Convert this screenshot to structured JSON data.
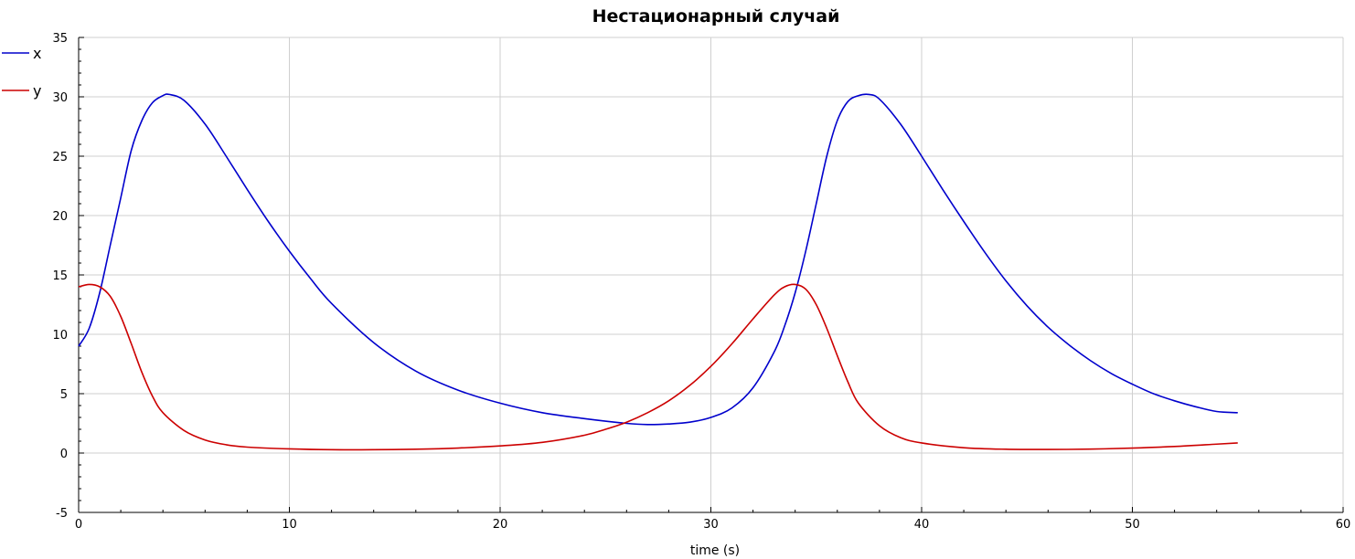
{
  "chart_data": {
    "type": "line",
    "title": "Нестационарный случай",
    "xlabel": "time (s)",
    "ylabel": "",
    "xlim": [
      0,
      60
    ],
    "ylim": [
      -5,
      35
    ],
    "x_ticks": [
      "0",
      "10",
      "20",
      "30",
      "40",
      "50",
      "60"
    ],
    "y_ticks": [
      "-5",
      "0",
      "5",
      "10",
      "15",
      "20",
      "25",
      "30",
      "35"
    ],
    "grid": true,
    "legend_position": "top-left",
    "series": [
      {
        "name": "x",
        "color": "#0000cc",
        "x": [
          0,
          0.5,
          1,
          1.5,
          2,
          2.5,
          3,
          3.5,
          4,
          4.3,
          5,
          6,
          7,
          8,
          9,
          10,
          11,
          12,
          14,
          16,
          18,
          20,
          22,
          24,
          26,
          27,
          28,
          29,
          30,
          31,
          32,
          33,
          33.5,
          34,
          34.5,
          35,
          35.5,
          36,
          36.5,
          37,
          37.5,
          38,
          39,
          40,
          41,
          42,
          43,
          44,
          45,
          46,
          47,
          48,
          49,
          50,
          51,
          52,
          53,
          54,
          55
        ],
        "y": [
          9,
          10.5,
          13.5,
          17.5,
          21.5,
          25.5,
          28,
          29.5,
          30.1,
          30.2,
          29.7,
          27.7,
          25,
          22.2,
          19.5,
          17,
          14.7,
          12.6,
          9.3,
          6.9,
          5.3,
          4.2,
          3.4,
          2.9,
          2.5,
          2.4,
          2.45,
          2.6,
          3.0,
          3.8,
          5.5,
          8.5,
          10.7,
          13.5,
          17,
          21,
          25,
          28,
          29.6,
          30.1,
          30.2,
          29.8,
          27.7,
          25,
          22.2,
          19.5,
          16.9,
          14.5,
          12.4,
          10.6,
          9.1,
          7.8,
          6.7,
          5.8,
          5.0,
          4.4,
          3.9,
          3.5,
          3.4
        ]
      },
      {
        "name": "y",
        "color": "#cc0000",
        "x": [
          0,
          0.5,
          1,
          1.5,
          2,
          2.5,
          3,
          3.5,
          4,
          5,
          6,
          7,
          8,
          10,
          12,
          14,
          16,
          18,
          20,
          22,
          24,
          25,
          26,
          27,
          28,
          29,
          30,
          31,
          32,
          33,
          33.5,
          34,
          34.5,
          35,
          35.5,
          36,
          36.5,
          37,
          38,
          39,
          40,
          42,
          44,
          46,
          48,
          50,
          52,
          54,
          55
        ],
        "y": [
          14,
          14.2,
          14,
          13.2,
          11.5,
          9.2,
          6.8,
          4.8,
          3.4,
          1.9,
          1.1,
          0.7,
          0.5,
          0.35,
          0.28,
          0.28,
          0.32,
          0.42,
          0.6,
          0.9,
          1.5,
          2.0,
          2.6,
          3.4,
          4.4,
          5.7,
          7.3,
          9.2,
          11.3,
          13.3,
          14.0,
          14.2,
          13.8,
          12.5,
          10.5,
          8.2,
          6.0,
          4.2,
          2.3,
          1.3,
          0.85,
          0.45,
          0.32,
          0.3,
          0.33,
          0.42,
          0.55,
          0.75,
          0.85
        ]
      }
    ]
  }
}
